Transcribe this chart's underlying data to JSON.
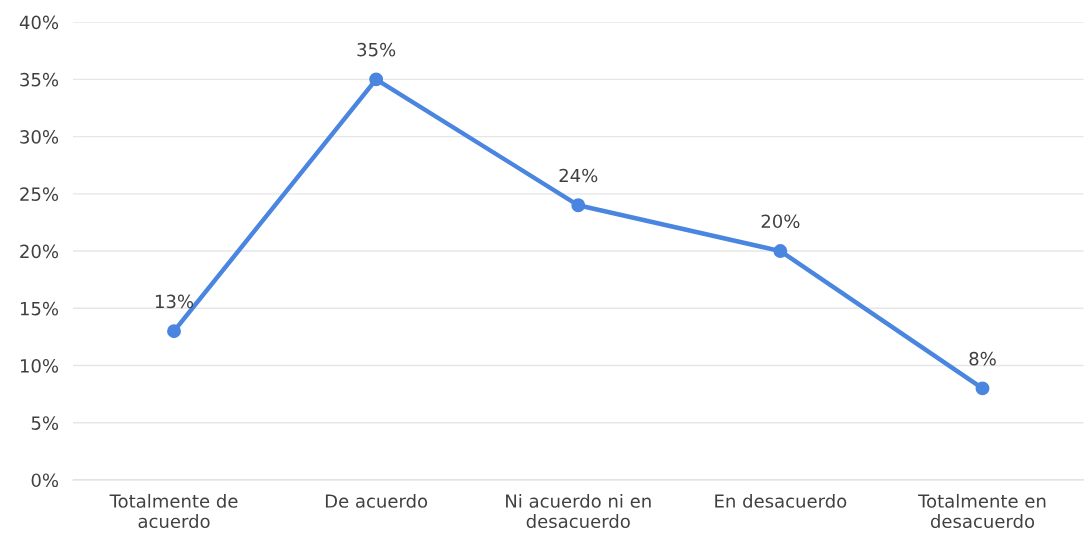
{
  "chart_data": {
    "type": "line",
    "categories": [
      "Totalmente de\nacuerdo",
      "De acuerdo",
      "Ni acuerdo ni en\ndesacuerdo",
      "En desacuerdo",
      "Totalmente en\ndesacuerdo"
    ],
    "series": [
      {
        "color": "#4a86e0",
        "values": [
          13,
          35,
          24,
          20,
          8
        ],
        "value_labels": [
          "13%",
          "35%",
          "24%",
          "20%",
          "8%"
        ]
      }
    ],
    "ylim": [
      0,
      40
    ],
    "yticks": [
      {
        "value": 0,
        "label": "0%"
      },
      {
        "value": 5,
        "label": "5%"
      },
      {
        "value": 10,
        "label": "10%"
      },
      {
        "value": 15,
        "label": "15%"
      },
      {
        "value": 20,
        "label": "20%"
      },
      {
        "value": 25,
        "label": "25%"
      },
      {
        "value": 30,
        "label": "30%"
      },
      {
        "value": 35,
        "label": "35%"
      },
      {
        "value": 40,
        "label": "40%"
      }
    ],
    "grid": "y",
    "marker": "circle",
    "line_style": "solid",
    "legend": false
  }
}
